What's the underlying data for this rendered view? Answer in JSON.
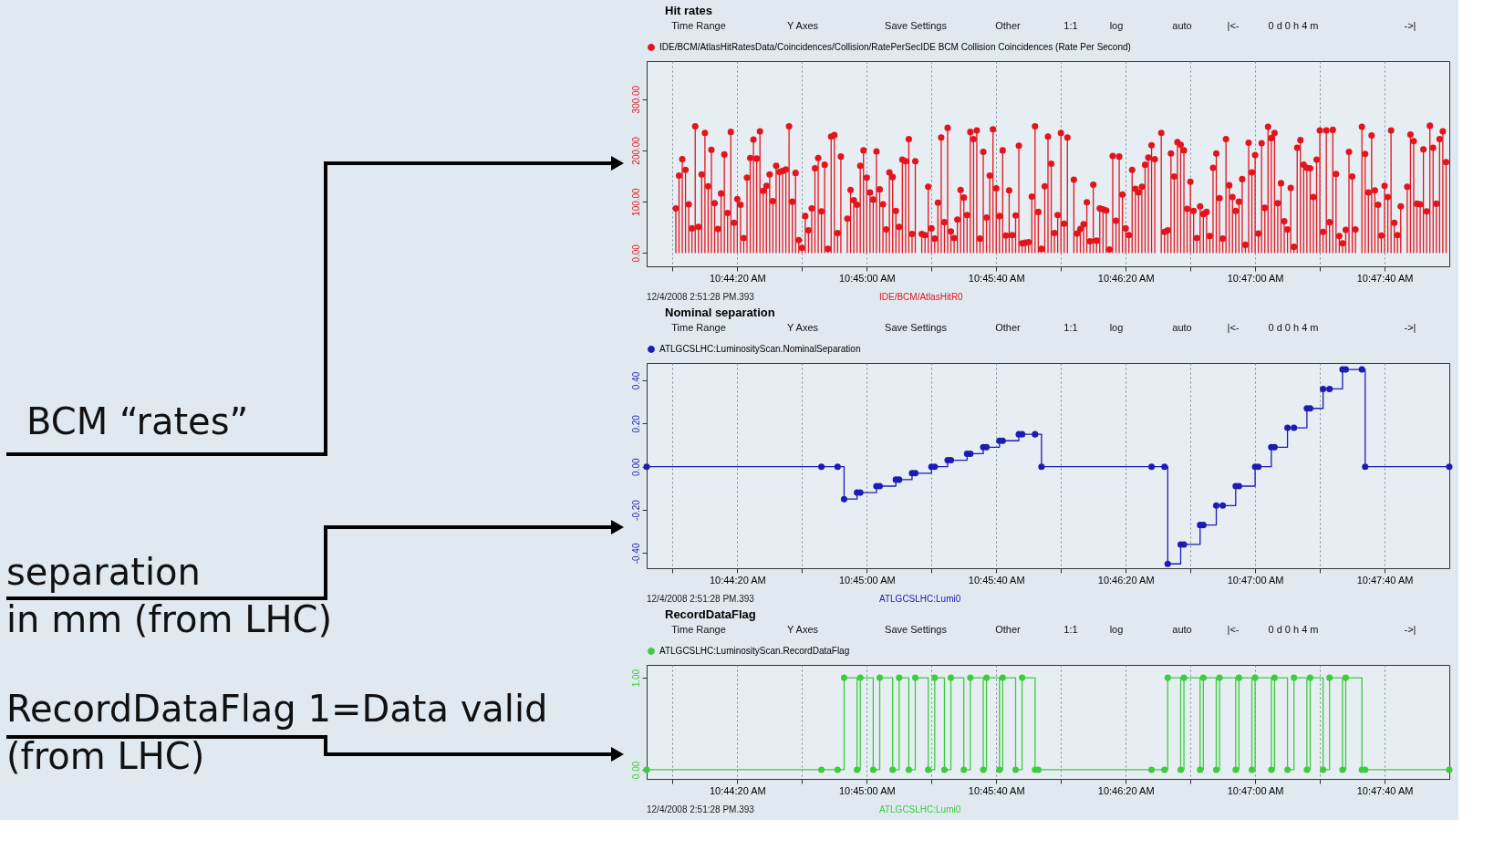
{
  "chart_data": [
    {
      "type": "lollipop",
      "title": "Hit rates",
      "x": [
        "2008-12-04T10:44:01",
        "2008-12-04T10:44:02",
        "2008-12-04T10:44:03",
        "2008-12-04T10:44:04",
        "2008-12-04T10:44:05",
        "2008-12-04T10:44:06",
        "2008-12-04T10:44:07",
        "2008-12-04T10:44:08",
        "2008-12-04T10:44:09",
        "2008-12-04T10:44:10",
        "2008-12-04T10:44:11",
        "2008-12-04T10:44:12",
        "2008-12-04T10:44:13",
        "2008-12-04T10:44:14",
        "2008-12-04T10:44:15",
        "2008-12-04T10:44:16",
        "2008-12-04T10:44:17",
        "2008-12-04T10:44:18",
        "2008-12-04T10:44:19",
        "2008-12-04T10:44:20",
        "2008-12-04T10:44:21",
        "2008-12-04T10:44:22",
        "2008-12-04T10:44:23",
        "2008-12-04T10:44:24",
        "2008-12-04T10:44:25",
        "2008-12-04T10:44:26",
        "2008-12-04T10:44:27",
        "2008-12-04T10:44:28",
        "2008-12-04T10:44:29",
        "2008-12-04T10:44:30",
        "2008-12-04T10:44:31",
        "2008-12-04T10:44:32",
        "2008-12-04T10:44:33",
        "2008-12-04T10:44:34",
        "2008-12-04T10:44:35",
        "2008-12-04T10:44:36",
        "2008-12-04T10:44:37",
        "2008-12-04T10:44:38",
        "2008-12-04T10:44:39",
        "2008-12-04T10:44:40",
        "2008-12-04T10:44:41",
        "2008-12-04T10:44:42",
        "2008-12-04T10:44:43",
        "2008-12-04T10:44:44",
        "2008-12-04T10:44:45",
        "2008-12-04T10:44:46",
        "2008-12-04T10:44:47",
        "2008-12-04T10:44:48",
        "2008-12-04T10:44:49",
        "2008-12-04T10:44:50",
        "2008-12-04T10:44:51",
        "2008-12-04T10:44:52",
        "2008-12-04T10:44:54",
        "2008-12-04T10:44:55",
        "2008-12-04T10:44:56",
        "2008-12-04T10:44:57",
        "2008-12-04T10:44:58",
        "2008-12-04T10:44:59",
        "2008-12-04T10:45:00",
        "2008-12-04T10:45:01",
        "2008-12-04T10:45:02",
        "2008-12-04T10:45:03",
        "2008-12-04T10:45:04",
        "2008-12-04T10:45:05",
        "2008-12-04T10:45:06",
        "2008-12-04T10:45:07",
        "2008-12-04T10:45:08",
        "2008-12-04T10:45:09",
        "2008-12-04T10:45:10",
        "2008-12-04T10:45:11",
        "2008-12-04T10:45:12",
        "2008-12-04T10:45:13",
        "2008-12-04T10:45:14",
        "2008-12-04T10:45:15",
        "2008-12-04T10:45:17",
        "2008-12-04T10:45:18",
        "2008-12-04T10:45:19",
        "2008-12-04T10:45:20",
        "2008-12-04T10:45:21",
        "2008-12-04T10:45:22",
        "2008-12-04T10:45:23",
        "2008-12-04T10:45:24",
        "2008-12-04T10:45:25",
        "2008-12-04T10:45:26",
        "2008-12-04T10:45:27",
        "2008-12-04T10:45:28",
        "2008-12-04T10:45:29",
        "2008-12-04T10:45:30",
        "2008-12-04T10:45:31",
        "2008-12-04T10:45:32",
        "2008-12-04T10:45:33",
        "2008-12-04T10:45:34",
        "2008-12-04T10:45:35",
        "2008-12-04T10:45:36",
        "2008-12-04T10:45:37",
        "2008-12-04T10:45:38",
        "2008-12-04T10:45:39",
        "2008-12-04T10:45:40",
        "2008-12-04T10:45:41",
        "2008-12-04T10:45:42",
        "2008-12-04T10:45:43",
        "2008-12-04T10:45:44",
        "2008-12-04T10:45:45",
        "2008-12-04T10:45:46",
        "2008-12-04T10:45:47",
        "2008-12-04T10:45:48",
        "2008-12-04T10:45:49",
        "2008-12-04T10:45:50",
        "2008-12-04T10:45:51",
        "2008-12-04T10:45:52",
        "2008-12-04T10:45:53",
        "2008-12-04T10:45:54",
        "2008-12-04T10:45:55",
        "2008-12-04T10:45:56",
        "2008-12-04T10:45:57",
        "2008-12-04T10:45:58",
        "2008-12-04T10:45:59",
        "2008-12-04T10:46:00",
        "2008-12-04T10:46:01",
        "2008-12-04T10:46:02",
        "2008-12-04T10:46:04",
        "2008-12-04T10:46:05",
        "2008-12-04T10:46:06",
        "2008-12-04T10:46:07",
        "2008-12-04T10:46:08",
        "2008-12-04T10:46:09",
        "2008-12-04T10:46:10",
        "2008-12-04T10:46:11",
        "2008-12-04T10:46:12",
        "2008-12-04T10:46:13",
        "2008-12-04T10:46:14",
        "2008-12-04T10:46:15",
        "2008-12-04T10:46:16",
        "2008-12-04T10:46:17",
        "2008-12-04T10:46:18",
        "2008-12-04T10:46:19",
        "2008-12-04T10:46:20",
        "2008-12-04T10:46:21",
        "2008-12-04T10:46:22",
        "2008-12-04T10:46:23",
        "2008-12-04T10:46:24",
        "2008-12-04T10:46:25",
        "2008-12-04T10:46:26",
        "2008-12-04T10:46:27",
        "2008-12-04T10:46:28",
        "2008-12-04T10:46:29",
        "2008-12-04T10:46:31",
        "2008-12-04T10:46:32",
        "2008-12-04T10:46:33",
        "2008-12-04T10:46:34",
        "2008-12-04T10:46:35",
        "2008-12-04T10:46:36",
        "2008-12-04T10:46:37",
        "2008-12-04T10:46:38",
        "2008-12-04T10:46:39",
        "2008-12-04T10:46:40",
        "2008-12-04T10:46:41",
        "2008-12-04T10:46:42",
        "2008-12-04T10:46:43",
        "2008-12-04T10:46:44",
        "2008-12-04T10:46:45",
        "2008-12-04T10:46:46",
        "2008-12-04T10:46:47",
        "2008-12-04T10:46:48",
        "2008-12-04T10:46:49",
        "2008-12-04T10:46:50",
        "2008-12-04T10:46:51",
        "2008-12-04T10:46:52",
        "2008-12-04T10:46:53",
        "2008-12-04T10:46:54",
        "2008-12-04T10:46:55",
        "2008-12-04T10:46:56",
        "2008-12-04T10:46:57",
        "2008-12-04T10:46:58",
        "2008-12-04T10:46:59",
        "2008-12-04T10:47:00",
        "2008-12-04T10:47:01",
        "2008-12-04T10:47:02",
        "2008-12-04T10:47:03",
        "2008-12-04T10:47:04",
        "2008-12-04T10:47:05",
        "2008-12-04T10:47:06",
        "2008-12-04T10:47:07",
        "2008-12-04T10:47:08",
        "2008-12-04T10:47:09",
        "2008-12-04T10:47:10",
        "2008-12-04T10:47:11",
        "2008-12-04T10:47:12",
        "2008-12-04T10:47:13",
        "2008-12-04T10:47:14",
        "2008-12-04T10:47:15",
        "2008-12-04T10:47:16",
        "2008-12-04T10:47:17",
        "2008-12-04T10:47:18",
        "2008-12-04T10:47:19",
        "2008-12-04T10:47:20",
        "2008-12-04T10:47:21",
        "2008-12-04T10:47:22",
        "2008-12-04T10:47:23",
        "2008-12-04T10:47:24",
        "2008-12-04T10:47:25",
        "2008-12-04T10:47:26",
        "2008-12-04T10:47:27",
        "2008-12-04T10:47:28",
        "2008-12-04T10:47:29",
        "2008-12-04T10:47:30",
        "2008-12-04T10:47:31",
        "2008-12-04T10:47:33",
        "2008-12-04T10:47:34",
        "2008-12-04T10:47:35",
        "2008-12-04T10:47:36",
        "2008-12-04T10:47:37",
        "2008-12-04T10:47:38",
        "2008-12-04T10:47:39",
        "2008-12-04T10:47:40",
        "2008-12-04T10:47:41",
        "2008-12-04T10:47:42",
        "2008-12-04T10:47:43",
        "2008-12-04T10:47:44",
        "2008-12-04T10:47:45",
        "2008-12-04T10:47:47",
        "2008-12-04T10:47:48",
        "2008-12-04T10:47:49",
        "2008-12-04T10:47:50",
        "2008-12-04T10:47:51",
        "2008-12-04T10:47:52",
        "2008-12-04T10:47:53",
        "2008-12-04T10:47:54",
        "2008-12-04T10:47:55",
        "2008-12-04T10:47:56",
        "2008-12-04T10:47:57",
        "2008-12-04T10:47:58",
        "2008-12-04T10:47:59"
      ],
      "series": [
        {
          "name": "IDE/BCM/AtlasHitRatesData/Coincidences/Collision/RatePerSecIDE BCM Collision Coincidences (Rate Per Second)",
          "color": "#e4141c",
          "values": [
            87,
            151,
            183,
            162,
            95,
            48,
            247,
            51,
            153,
            234,
            130,
            201,
            97,
            47,
            116,
            192,
            78,
            236,
            59,
            105,
            94,
            29,
            147,
            185,
            221,
            184,
            237,
            121,
            131,
            153,
            101,
            170,
            158,
            160,
            163,
            247,
            100,
            156,
            25,
            10,
            72,
            44,
            87,
            165,
            185,
            81,
            172,
            8,
            227,
            230,
            39,
            188,
            67,
            123,
            103,
            94,
            170,
            200,
            147,
            118,
            104,
            198,
            124,
            95,
            46,
            157,
            148,
            82,
            51,
            182,
            179,
            222,
            37,
            179,
            37,
            35,
            129,
            48,
            28,
            98,
            225,
            60,
            244,
            42,
            29,
            65,
            123,
            108,
            74,
            236,
            222,
            239,
            28,
            197,
            69,
            151,
            241,
            126,
            72,
            200,
            34,
            122,
            35,
            73,
            209,
            19,
            20,
            21,
            110,
            247,
            80,
            8,
            130,
            227,
            174,
            39,
            74,
            234,
            57,
            225,
            143,
            38,
            47,
            56,
            99,
            23,
            133,
            24,
            87,
            85,
            83,
            7,
            189,
            63,
            188,
            114,
            48,
            35,
            162,
            125,
            118,
            129,
            172,
            186,
            210,
            183,
            234,
            41,
            44,
            194,
            149,
            216,
            211,
            200,
            86,
            139,
            82,
            29,
            91,
            76,
            80,
            33,
            166,
            194,
            107,
            28,
            222,
            132,
            109,
            82,
            100,
            144,
            16,
            215,
            157,
            191,
            38,
            214,
            88,
            246,
            224,
            234,
            97,
            136,
            62,
            46,
            127,
            12,
            205,
            220,
            172,
            166,
            165,
            109,
            182,
            239,
            41,
            239,
            60,
            240,
            154,
            33,
            19,
            45,
            197,
            149,
            46,
            246,
            193,
            118,
            229,
            122,
            94,
            34,
            131,
            109,
            239,
            59,
            35,
            91,
            129,
            231,
            218,
            96,
            95,
            202,
            81,
            248,
            205,
            96,
            222,
            237,
            177
          ]
        }
      ],
      "xlim": [
        "2008-12-04T10:43:52",
        "2008-12-04T10:48:00"
      ],
      "xticks": [
        {
          "value": "2008-12-04T10:44:00",
          "label": null
        },
        {
          "value": "2008-12-04T10:44:20",
          "label": "10:44:20 AM"
        },
        {
          "value": "2008-12-04T10:44:40",
          "label": null
        },
        {
          "value": "2008-12-04T10:45:00",
          "label": "10:45:00 AM"
        },
        {
          "value": "2008-12-04T10:45:20",
          "label": null
        },
        {
          "value": "2008-12-04T10:45:40",
          "label": "10:45:40 AM"
        },
        {
          "value": "2008-12-04T10:46:00",
          "label": null
        },
        {
          "value": "2008-12-04T10:46:20",
          "label": "10:46:20 AM"
        },
        {
          "value": "2008-12-04T10:46:40",
          "label": null
        },
        {
          "value": "2008-12-04T10:47:00",
          "label": "10:47:00 AM"
        },
        {
          "value": "2008-12-04T10:47:20",
          "label": null
        },
        {
          "value": "2008-12-04T10:47:40",
          "label": "10:47:40 AM"
        }
      ],
      "ylim": [
        -26,
        374
      ],
      "yticks": [
        {
          "value": 0,
          "label": "0.00"
        },
        {
          "value": 100,
          "label": "100.00"
        },
        {
          "value": 200,
          "label": "200.00"
        },
        {
          "value": 300,
          "label": "300.00"
        }
      ],
      "grid": "x",
      "legend": "top left",
      "marker": "circle",
      "annotations": [
        "BCM “rates”",
        "12/4/2008 2:51:28 PM.393",
        "IDE/BCM/AtlasHitR0",
        "Time Range",
        "Y Axes",
        "Save Settings",
        "Other",
        "1:1",
        "log",
        "auto",
        "|<-",
        "0 d 0 h 4 m",
        "->|"
      ]
    },
    {
      "type": "step",
      "title": "Nominal separation",
      "x": [
        "2008-12-04T10:43:52",
        "2008-12-04T10:44:46",
        "2008-12-04T10:44:51",
        "2008-12-04T10:44:53",
        "2008-12-04T10:44:57",
        "2008-12-04T10:44:58",
        "2008-12-04T10:45:03",
        "2008-12-04T10:45:04",
        "2008-12-04T10:45:09",
        "2008-12-04T10:45:10",
        "2008-12-04T10:45:14",
        "2008-12-04T10:45:15",
        "2008-12-04T10:45:20",
        "2008-12-04T10:45:21",
        "2008-12-04T10:45:25",
        "2008-12-04T10:45:26",
        "2008-12-04T10:45:31",
        "2008-12-04T10:45:32",
        "2008-12-04T10:45:36",
        "2008-12-04T10:45:37",
        "2008-12-04T10:45:41",
        "2008-12-04T10:45:42",
        "2008-12-04T10:45:47",
        "2008-12-04T10:45:48",
        "2008-12-04T10:45:52",
        "2008-12-04T10:45:54",
        "2008-12-04T10:46:28",
        "2008-12-04T10:46:32",
        "2008-12-04T10:46:33",
        "2008-12-04T10:46:37",
        "2008-12-04T10:46:38",
        "2008-12-04T10:46:43",
        "2008-12-04T10:46:44",
        "2008-12-04T10:46:48",
        "2008-12-04T10:46:50",
        "2008-12-04T10:46:54",
        "2008-12-04T10:46:55",
        "2008-12-04T10:47:00",
        "2008-12-04T10:47:01",
        "2008-12-04T10:47:05",
        "2008-12-04T10:47:06",
        "2008-12-04T10:47:10",
        "2008-12-04T10:47:12",
        "2008-12-04T10:47:16",
        "2008-12-04T10:47:17",
        "2008-12-04T10:47:21",
        "2008-12-04T10:47:23",
        "2008-12-04T10:47:27",
        "2008-12-04T10:47:28",
        "2008-12-04T10:47:33",
        "2008-12-04T10:47:34",
        "2008-12-04T10:48:00"
      ],
      "series": [
        {
          "name": "ATLGCSLHC:LuminosityScan.NominalSeparation",
          "color": "#1c1cb4",
          "values": [
            0,
            0,
            0,
            -0.15,
            -0.12,
            -0.12,
            -0.09,
            -0.09,
            -0.06,
            -0.06,
            -0.03,
            -0.03,
            0,
            0,
            0.03,
            0.03,
            0.06,
            0.06,
            0.09,
            0.09,
            0.12,
            0.12,
            0.15,
            0.15,
            0.15,
            0,
            0,
            0,
            -0.45,
            -0.36,
            -0.36,
            -0.27,
            -0.27,
            -0.18,
            -0.18,
            -0.09,
            -0.09,
            0,
            0,
            0.09,
            0.09,
            0.18,
            0.18,
            0.27,
            0.27,
            0.36,
            0.36,
            0.45,
            0.45,
            0.45,
            0,
            0
          ]
        }
      ],
      "xlim": [
        "2008-12-04T10:43:52",
        "2008-12-04T10:48:00"
      ],
      "xticks": [
        {
          "value": "2008-12-04T10:44:00",
          "label": null
        },
        {
          "value": "2008-12-04T10:44:20",
          "label": "10:44:20 AM"
        },
        {
          "value": "2008-12-04T10:44:40",
          "label": null
        },
        {
          "value": "2008-12-04T10:45:00",
          "label": "10:45:00 AM"
        },
        {
          "value": "2008-12-04T10:45:20",
          "label": null
        },
        {
          "value": "2008-12-04T10:45:40",
          "label": "10:45:40 AM"
        },
        {
          "value": "2008-12-04T10:46:00",
          "label": null
        },
        {
          "value": "2008-12-04T10:46:20",
          "label": "10:46:20 AM"
        },
        {
          "value": "2008-12-04T10:46:40",
          "label": null
        },
        {
          "value": "2008-12-04T10:47:00",
          "label": "10:47:00 AM"
        },
        {
          "value": "2008-12-04T10:47:20",
          "label": null
        },
        {
          "value": "2008-12-04T10:47:40",
          "label": "10:47:40 AM"
        }
      ],
      "ylim": [
        -0.47,
        0.48
      ],
      "yticks": [
        {
          "value": -0.4,
          "label": "-0.40"
        },
        {
          "value": -0.2,
          "label": "-0.20"
        },
        {
          "value": 0,
          "label": "0.00"
        },
        {
          "value": 0.2,
          "label": "0.20"
        },
        {
          "value": 0.4,
          "label": "0.40"
        }
      ],
      "grid": "x",
      "legend": "top left",
      "marker": "circle",
      "annotations": [
        "separation\nin mm (from LHC)",
        "12/4/2008 2:51:28 PM.393",
        "ATLGCSLHC:Lumi0",
        "Time Range",
        "Y Axes",
        "Save Settings",
        "Other",
        "1:1",
        "log",
        "auto",
        "|<-",
        "0 d 0 h 4 m",
        "->|"
      ]
    },
    {
      "type": "step",
      "title": "RecordDataFlag",
      "x": [
        "2008-12-04T10:43:52",
        "2008-12-04T10:44:46",
        "2008-12-04T10:44:51",
        "2008-12-04T10:44:53",
        "2008-12-04T10:44:57",
        "2008-12-04T10:44:58",
        "2008-12-04T10:45:02",
        "2008-12-04T10:45:04",
        "2008-12-04T10:45:08",
        "2008-12-04T10:45:10",
        "2008-12-04T10:45:13",
        "2008-12-04T10:45:15",
        "2008-12-04T10:45:19",
        "2008-12-04T10:45:21",
        "2008-12-04T10:45:24",
        "2008-12-04T10:45:26",
        "2008-12-04T10:45:30",
        "2008-12-04T10:45:32",
        "2008-12-04T10:45:36",
        "2008-12-04T10:45:37",
        "2008-12-04T10:45:41",
        "2008-12-04T10:45:42",
        "2008-12-04T10:45:46",
        "2008-12-04T10:45:48",
        "2008-12-04T10:45:52",
        "2008-12-04T10:45:53",
        "2008-12-04T10:46:28",
        "2008-12-04T10:46:32",
        "2008-12-04T10:46:33",
        "2008-12-04T10:46:37",
        "2008-12-04T10:46:38",
        "2008-12-04T10:46:43",
        "2008-12-04T10:46:44",
        "2008-12-04T10:46:48",
        "2008-12-04T10:46:49",
        "2008-12-04T10:46:54",
        "2008-12-04T10:46:55",
        "2008-12-04T10:46:59",
        "2008-12-04T10:47:00",
        "2008-12-04T10:47:05",
        "2008-12-04T10:47:06",
        "2008-12-04T10:47:10",
        "2008-12-04T10:47:12",
        "2008-12-04T10:47:16",
        "2008-12-04T10:47:17",
        "2008-12-04T10:47:21",
        "2008-12-04T10:47:23",
        "2008-12-04T10:47:27",
        "2008-12-04T10:47:28",
        "2008-12-04T10:47:33",
        "2008-12-04T10:47:34",
        "2008-12-04T10:48:00"
      ],
      "series": [
        {
          "name": "ATLGCSLHC:LuminosityScan.RecordDataFlag",
          "color": "#3ccc3c",
          "values": [
            0,
            0,
            0,
            1,
            0,
            1,
            0,
            1,
            0,
            1,
            0,
            1,
            0,
            1,
            0,
            1,
            0,
            1,
            0,
            1,
            0,
            1,
            0,
            1,
            0,
            0,
            0,
            0,
            1,
            0,
            1,
            0,
            1,
            0,
            1,
            0,
            1,
            0,
            1,
            0,
            1,
            0,
            1,
            0,
            1,
            0,
            1,
            0,
            1,
            0,
            0,
            0
          ]
        }
      ],
      "xlim": [
        "2008-12-04T10:43:52",
        "2008-12-04T10:48:00"
      ],
      "xticks": [
        {
          "value": "2008-12-04T10:44:00",
          "label": null
        },
        {
          "value": "2008-12-04T10:44:20",
          "label": "10:44:20 AM"
        },
        {
          "value": "2008-12-04T10:44:40",
          "label": null
        },
        {
          "value": "2008-12-04T10:45:00",
          "label": "10:45:00 AM"
        },
        {
          "value": "2008-12-04T10:45:20",
          "label": null
        },
        {
          "value": "2008-12-04T10:45:40",
          "label": "10:45:40 AM"
        },
        {
          "value": "2008-12-04T10:46:00",
          "label": null
        },
        {
          "value": "2008-12-04T10:46:20",
          "label": "10:46:20 AM"
        },
        {
          "value": "2008-12-04T10:46:40",
          "label": null
        },
        {
          "value": "2008-12-04T10:47:00",
          "label": "10:47:00 AM"
        },
        {
          "value": "2008-12-04T10:47:20",
          "label": null
        },
        {
          "value": "2008-12-04T10:47:40",
          "label": "10:47:40 AM"
        }
      ],
      "ylim": [
        -0.1,
        1.14
      ],
      "yticks": [
        {
          "value": 0,
          "label": "0.00"
        },
        {
          "value": 1,
          "label": "1.00"
        }
      ],
      "grid": "x",
      "legend": "top left",
      "marker": "circle",
      "annotations": [
        "RecordDataFlag 1=Data valid\n(from LHC)",
        "12/4/2008 2:51:28 PM.393",
        "ATLGCSLHC:Lumi0",
        "Time Range",
        "Y Axes",
        "Save Settings",
        "Other",
        "1:1",
        "log",
        "auto",
        "|<-",
        "0 d 0 h 4 m",
        "->|"
      ]
    }
  ]
}
